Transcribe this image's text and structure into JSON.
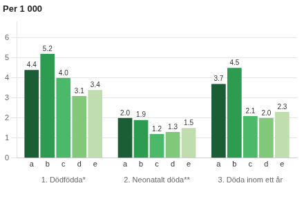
{
  "chart_data": {
    "type": "bar",
    "title": "Per 1 000",
    "groups": [
      {
        "label": "1. Dödfödda*",
        "categories": [
          "a",
          "b",
          "c",
          "d",
          "e"
        ],
        "values": [
          4.4,
          5.2,
          4.0,
          3.1,
          3.4
        ],
        "value_labels": [
          "4.4",
          "5.2",
          "4.0",
          "3.1",
          "3.4"
        ]
      },
      {
        "label": "2. Neonatalt döda**",
        "categories": [
          "a",
          "b",
          "c",
          "d",
          "e"
        ],
        "values": [
          2.0,
          1.9,
          1.2,
          1.3,
          1.5
        ],
        "value_labels": [
          "2.0",
          "1.9",
          "1.2",
          "1.3",
          "1.5"
        ]
      },
      {
        "label": "3. Döda inom ett år",
        "categories": [
          "a",
          "b",
          "c",
          "d",
          "e"
        ],
        "values": [
          3.7,
          4.5,
          2.1,
          2.0,
          2.3
        ],
        "value_labels": [
          "3.7",
          "4.5",
          "2.1",
          "2.0",
          "2.3"
        ]
      }
    ],
    "colors": [
      "#1b5e35",
      "#2d9b50",
      "#4cb86a",
      "#82c87a",
      "#c0ddb0"
    ],
    "ylim": [
      0,
      6.8
    ],
    "yticks": [
      0,
      1,
      2,
      3,
      4,
      5,
      6
    ],
    "grid": true,
    "data_labels": true
  }
}
